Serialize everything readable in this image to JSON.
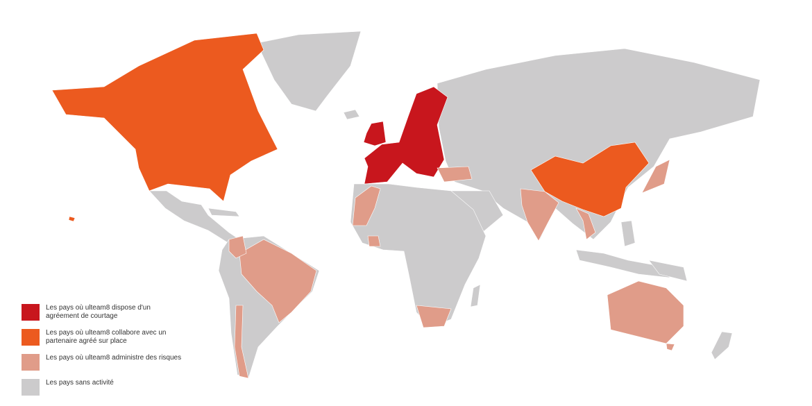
{
  "category_colors": {
    "brokerage_license": "#c8161d",
    "local_partner": "#ec5a1f",
    "risk_administration": "#e09c89",
    "no_activity": "#cccbcc"
  },
  "legend": [
    {
      "category": "brokerage_license",
      "label": "Les pays où ulteam8 dispose d'un agréement de courtage"
    },
    {
      "category": "local_partner",
      "label": "Les pays où ulteam8 collabore avec un partenaire agréé sur place"
    },
    {
      "category": "risk_administration",
      "label": "Les pays où ulteam8 administre des risques"
    },
    {
      "category": "no_activity",
      "label": "Les pays sans activité"
    }
  ]
}
